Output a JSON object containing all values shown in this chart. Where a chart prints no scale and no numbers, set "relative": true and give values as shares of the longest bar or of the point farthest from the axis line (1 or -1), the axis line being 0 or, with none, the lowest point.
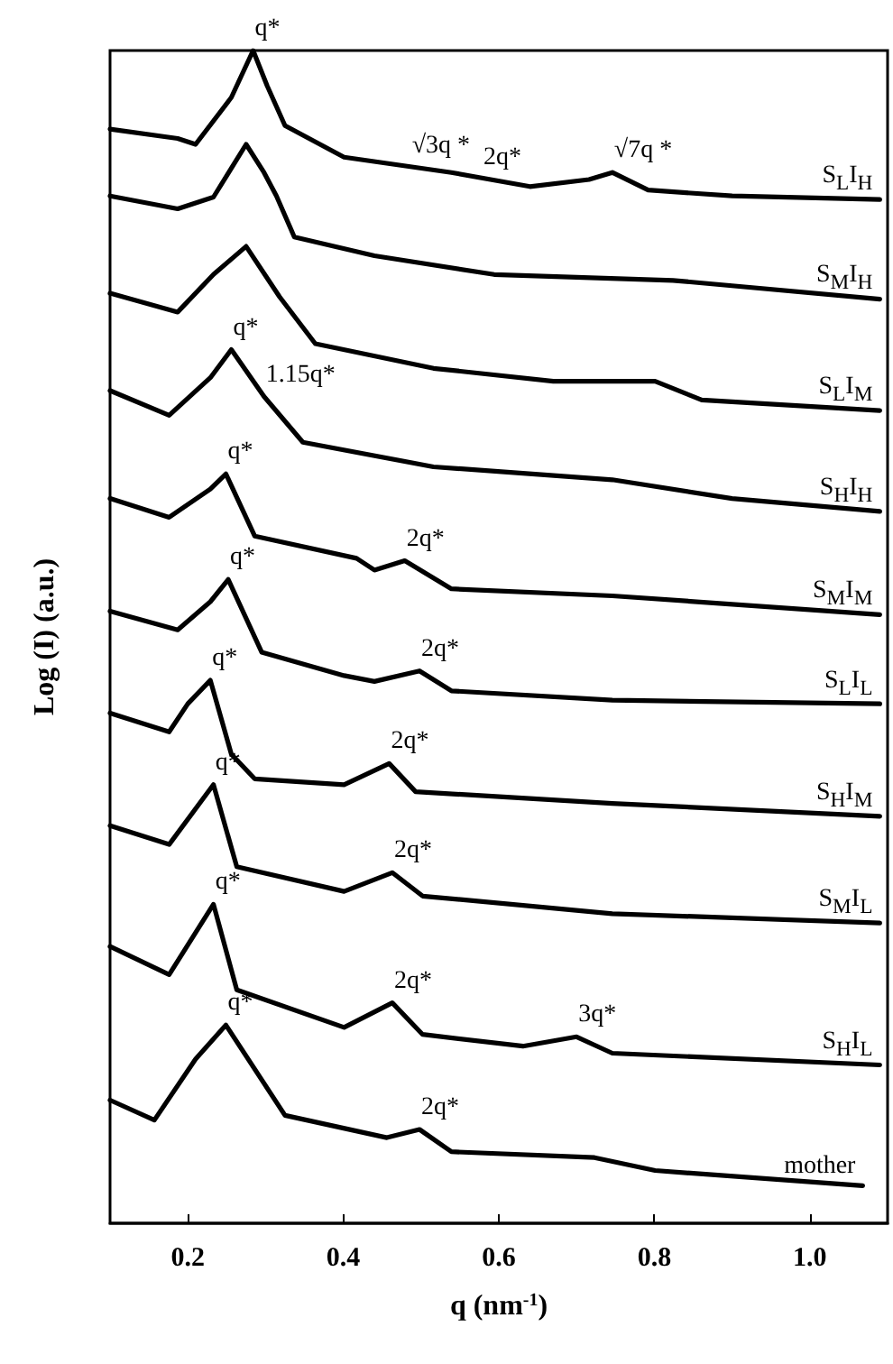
{
  "chart_data": {
    "type": "line",
    "relative": true,
    "xlabel": "q (nm$^{-1}$)",
    "ylabel": "Log (I) (a.u.)",
    "xlim": [
      0.1,
      1.1
    ],
    "xticks": [
      0.2,
      0.4,
      0.6,
      0.8,
      {
        "value": 1.0,
        "label": "1.0"
      }
    ],
    "grid": false,
    "legend": false,
    "marker": "none",
    "line_style": "solid",
    "series": [
      {
        "name": "S$_{L}$I$_{H}$",
        "color": "#000000",
        "x": [
          0.1,
          0.187,
          0.21,
          0.256,
          0.284,
          0.302,
          0.325,
          0.401,
          0.539,
          0.64,
          0.716,
          0.746,
          0.792,
          0.9,
          1.09
        ],
        "values": [
          0.933,
          0.925,
          0.92,
          0.96,
          1.0,
          0.97,
          0.936,
          0.909,
          0.896,
          0.884,
          0.89,
          0.896,
          0.881,
          0.876,
          0.873
        ]
      },
      {
        "name": "S$_{M}$I$_{H}$",
        "color": "#000000",
        "x": [
          0.1,
          0.187,
          0.233,
          0.275,
          0.298,
          0.314,
          0.337,
          0.44,
          0.594,
          0.824,
          1.09
        ],
        "values": [
          0.876,
          0.865,
          0.875,
          0.92,
          0.896,
          0.876,
          0.841,
          0.825,
          0.809,
          0.804,
          0.788
        ]
      },
      {
        "name": "S$_{L}$I$_{M}$",
        "color": "#000000",
        "x": [
          0.1,
          0.187,
          0.233,
          0.275,
          0.318,
          0.364,
          0.516,
          0.67,
          0.801,
          0.861,
          1.09
        ],
        "values": [
          0.793,
          0.777,
          0.809,
          0.833,
          0.79,
          0.75,
          0.729,
          0.718,
          0.718,
          0.702,
          0.693
        ]
      },
      {
        "name": "S$_{H}$I$_{H}$",
        "color": "#000000",
        "x": [
          0.1,
          0.176,
          0.229,
          0.256,
          0.298,
          0.348,
          0.516,
          0.746,
          0.9,
          1.09
        ],
        "values": [
          0.71,
          0.689,
          0.721,
          0.745,
          0.705,
          0.666,
          0.645,
          0.634,
          0.618,
          0.607
        ]
      },
      {
        "name": "S$_{M}$I$_{M}$",
        "color": "#000000",
        "x": [
          0.1,
          0.176,
          0.229,
          0.249,
          0.286,
          0.417,
          0.44,
          0.479,
          0.539,
          0.746,
          1.09
        ],
        "values": [
          0.618,
          0.602,
          0.626,
          0.639,
          0.586,
          0.567,
          0.557,
          0.565,
          0.541,
          0.535,
          0.519
        ]
      },
      {
        "name": "S$_{L}$I$_{L}$",
        "color": "#000000",
        "x": [
          0.1,
          0.187,
          0.229,
          0.252,
          0.295,
          0.401,
          0.44,
          0.498,
          0.539,
          0.746,
          1.09
        ],
        "values": [
          0.522,
          0.506,
          0.53,
          0.549,
          0.487,
          0.467,
          0.462,
          0.471,
          0.454,
          0.446,
          0.443
        ]
      },
      {
        "name": "S$_{H}$I$_{M}$",
        "color": "#000000",
        "x": [
          0.1,
          0.176,
          0.2,
          0.229,
          0.256,
          0.286,
          0.401,
          0.459,
          0.493,
          0.746,
          1.09
        ],
        "values": [
          0.435,
          0.419,
          0.443,
          0.463,
          0.4,
          0.379,
          0.374,
          0.392,
          0.368,
          0.358,
          0.347
        ]
      },
      {
        "name": "S$_{M}$I$_{L}$",
        "color": "#000000",
        "x": [
          0.1,
          0.176,
          0.233,
          0.263,
          0.401,
          0.463,
          0.502,
          0.746,
          1.09
        ],
        "values": [
          0.339,
          0.323,
          0.374,
          0.304,
          0.283,
          0.299,
          0.279,
          0.264,
          0.256
        ]
      },
      {
        "name": "S$_{H}$I$_{L}$",
        "color": "#000000",
        "x": [
          0.1,
          0.176,
          0.233,
          0.263,
          0.401,
          0.463,
          0.502,
          0.631,
          0.7,
          0.746,
          1.09
        ],
        "values": [
          0.236,
          0.212,
          0.272,
          0.199,
          0.167,
          0.188,
          0.161,
          0.151,
          0.159,
          0.145,
          0.135
        ]
      },
      {
        "name": "mother",
        "color": "#000000",
        "x": [
          0.1,
          0.157,
          0.21,
          0.249,
          0.325,
          0.456,
          0.498,
          0.539,
          0.723,
          0.801,
          1.068
        ],
        "values": [
          0.105,
          0.088,
          0.14,
          0.169,
          0.092,
          0.073,
          0.08,
          0.061,
          0.056,
          0.045,
          0.032
        ]
      }
    ],
    "annotations": [
      {
        "text": "q*",
        "x": 0.284,
        "y": 1.0
      },
      {
        "text": "√3q *",
        "x": 0.486,
        "y": 0.9
      },
      {
        "text": "2q*",
        "x": 0.578,
        "y": 0.89
      },
      {
        "text": "√7q *",
        "x": 0.746,
        "y": 0.896
      },
      {
        "text": "q*",
        "x": 0.256,
        "y": 0.745
      },
      {
        "text": "1.15q*",
        "x": 0.298,
        "y": 0.705
      },
      {
        "text": "q*",
        "x": 0.249,
        "y": 0.639
      },
      {
        "text": "2q*",
        "x": 0.479,
        "y": 0.565
      },
      {
        "text": "q*",
        "x": 0.252,
        "y": 0.549
      },
      {
        "text": "2q*",
        "x": 0.498,
        "y": 0.471
      },
      {
        "text": "q*",
        "x": 0.229,
        "y": 0.463
      },
      {
        "text": "2q*",
        "x": 0.459,
        "y": 0.392
      },
      {
        "text": "q*",
        "x": 0.233,
        "y": 0.374
      },
      {
        "text": "2q*",
        "x": 0.463,
        "y": 0.299
      },
      {
        "text": "q*",
        "x": 0.233,
        "y": 0.272
      },
      {
        "text": "2q*",
        "x": 0.463,
        "y": 0.188
      },
      {
        "text": "3q*",
        "x": 0.7,
        "y": 0.159
      },
      {
        "text": "q*",
        "x": 0.249,
        "y": 0.169
      },
      {
        "text": "2q*",
        "x": 0.498,
        "y": 0.08
      }
    ]
  }
}
